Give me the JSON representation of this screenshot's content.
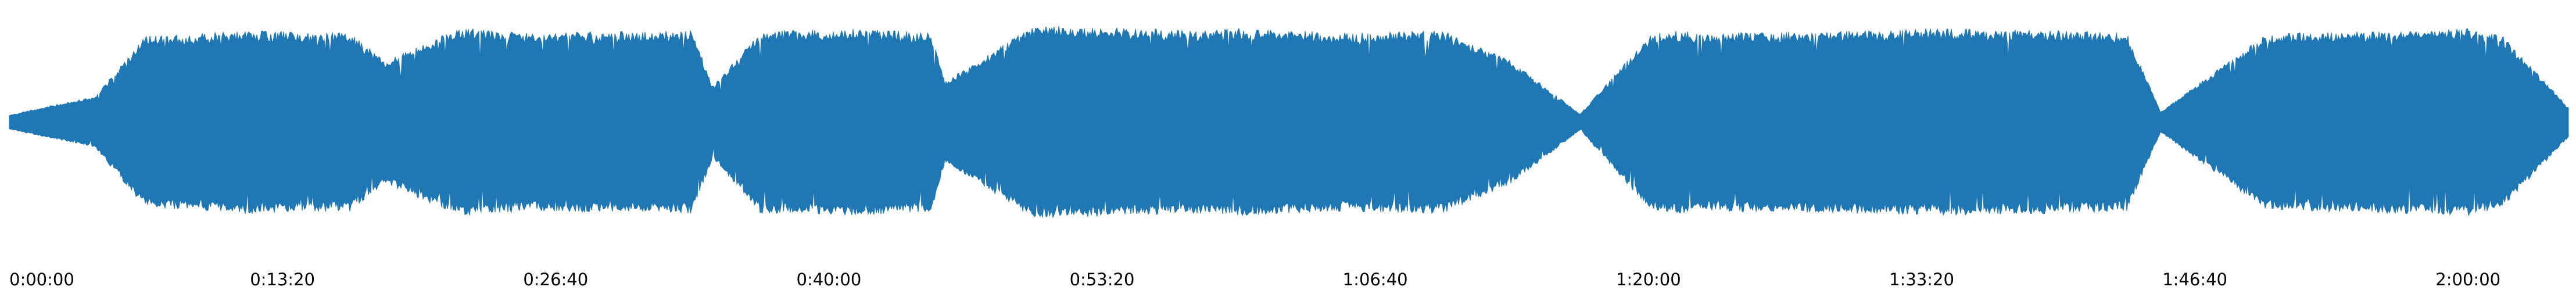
{
  "chart_data": {
    "type": "area",
    "title": "",
    "xlabel": "",
    "ylabel": "",
    "xlim_seconds": [
      0,
      7494
    ],
    "y_axis_visible": false,
    "x_axis_line_visible": false,
    "grid": false,
    "legend": "none",
    "series": [
      {
        "color": "#1f77b4",
        "envelope": {
          "x_seconds": [
            0,
            120,
            250,
            400,
            700,
            1000,
            1100,
            1300,
            1350,
            1500,
            2000,
            2060,
            2200,
            2500,
            2700,
            2740,
            3000,
            3500,
            3600,
            3900,
            4200,
            4400,
            4600,
            4800,
            4850,
            5000,
            5500,
            5600,
            6000,
            6200,
            6300,
            6600,
            6700,
            7000,
            7200,
            7300,
            7494
          ],
          "amplitude": [
            0.07,
            0.16,
            0.25,
            0.85,
            0.9,
            0.88,
            0.6,
            0.9,
            0.92,
            0.88,
            0.9,
            0.35,
            0.9,
            0.92,
            0.88,
            0.4,
            0.95,
            0.9,
            0.92,
            0.88,
            0.9,
            0.6,
            0.08,
            0.85,
            0.9,
            0.88,
            0.9,
            0.92,
            0.9,
            0.88,
            0.1,
            0.85,
            0.88,
            0.9,
            0.92,
            0.85,
            0.15
          ]
        }
      }
    ],
    "x_ticks": [
      {
        "seconds": 0,
        "label": "0:00:00"
      },
      {
        "seconds": 800,
        "label": "0:13:20"
      },
      {
        "seconds": 1600,
        "label": "0:26:40"
      },
      {
        "seconds": 2400,
        "label": "0:40:00"
      },
      {
        "seconds": 3200,
        "label": "0:53:20"
      },
      {
        "seconds": 4000,
        "label": "1:06:40"
      },
      {
        "seconds": 4800,
        "label": "1:20:00"
      },
      {
        "seconds": 5600,
        "label": "1:33:20"
      },
      {
        "seconds": 6400,
        "label": "1:46:40"
      },
      {
        "seconds": 7200,
        "label": "2:00:00"
      }
    ]
  }
}
